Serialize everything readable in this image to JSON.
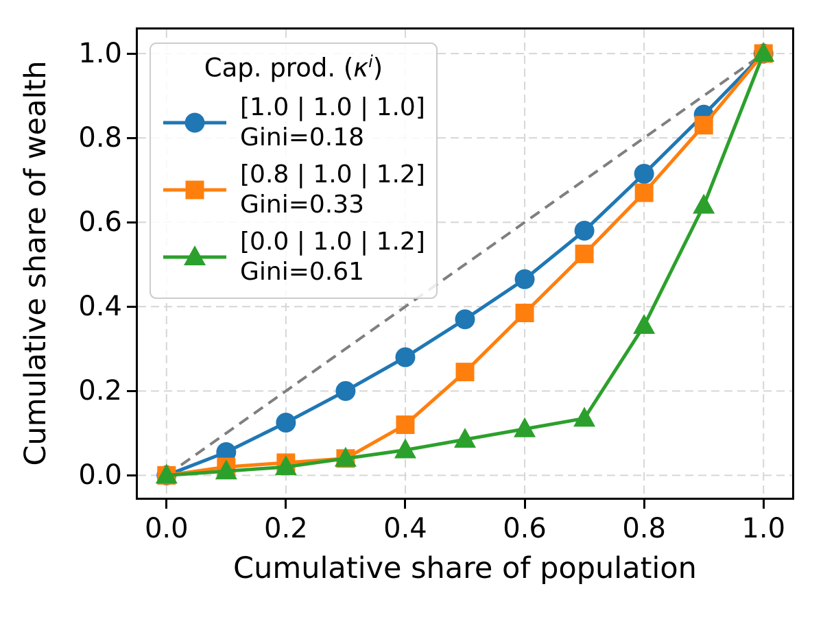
{
  "chart_data": {
    "type": "line",
    "description": "Lorenz curves of wealth distribution for three capital-productivity scenarios with an equality reference line",
    "xlabel": "Cumulative share of population",
    "ylabel": "Cumulative share of wealth",
    "xlim": [
      -0.048,
      1.048
    ],
    "ylim": [
      -0.053,
      1.057
    ],
    "grid": true,
    "x_ticks": [
      0.0,
      0.2,
      0.4,
      0.6,
      0.8,
      1.0
    ],
    "y_ticks": [
      0.0,
      0.2,
      0.4,
      0.6,
      0.8,
      1.0
    ],
    "x_tick_labels": [
      "0.0",
      "0.2",
      "0.4",
      "0.6",
      "0.8",
      "1.0"
    ],
    "y_tick_labels": [
      "0.0",
      "0.2",
      "0.4",
      "0.6",
      "0.8",
      "1.0"
    ],
    "x": [
      0.0,
      0.1,
      0.2,
      0.3,
      0.4,
      0.5,
      0.6,
      0.7,
      0.8,
      0.9,
      1.0
    ],
    "series": [
      {
        "name": "kappa-1.0-1.0-1.0",
        "label": "[1.0 | 1.0 | 1.0]",
        "gini_label": "Gini=0.18",
        "color": "#1f77b4",
        "marker": "circle",
        "values": [
          0.0,
          0.055,
          0.125,
          0.2,
          0.28,
          0.37,
          0.465,
          0.58,
          0.715,
          0.855,
          1.0
        ]
      },
      {
        "name": "kappa-0.8-1.0-1.2",
        "label": "[0.8 | 1.0 | 1.2]",
        "gini_label": "Gini=0.33",
        "color": "#ff7f0e",
        "marker": "square",
        "values": [
          0.0,
          0.02,
          0.03,
          0.04,
          0.12,
          0.245,
          0.385,
          0.525,
          0.67,
          0.83,
          1.0
        ]
      },
      {
        "name": "kappa-0.0-1.0-1.2",
        "label": "[0.0 | 1.0 | 1.2]",
        "gini_label": "Gini=0.61",
        "color": "#2ca02c",
        "marker": "triangle",
        "values": [
          0.0,
          0.01,
          0.02,
          0.04,
          0.06,
          0.085,
          0.11,
          0.135,
          0.355,
          0.64,
          1.0
        ]
      }
    ],
    "reference_line": {
      "name": "equality-line",
      "from": [
        0.0,
        0.0
      ],
      "to": [
        1.0,
        1.0
      ],
      "color": "#7f7f7f",
      "style": "dashed"
    },
    "grid_color": "#d6d6d6",
    "legend_position": "upper left"
  },
  "legend": {
    "title_prefix": "Cap. prod. (",
    "title_symbol": "κ",
    "title_sup": "i",
    "title_suffix": ")"
  }
}
